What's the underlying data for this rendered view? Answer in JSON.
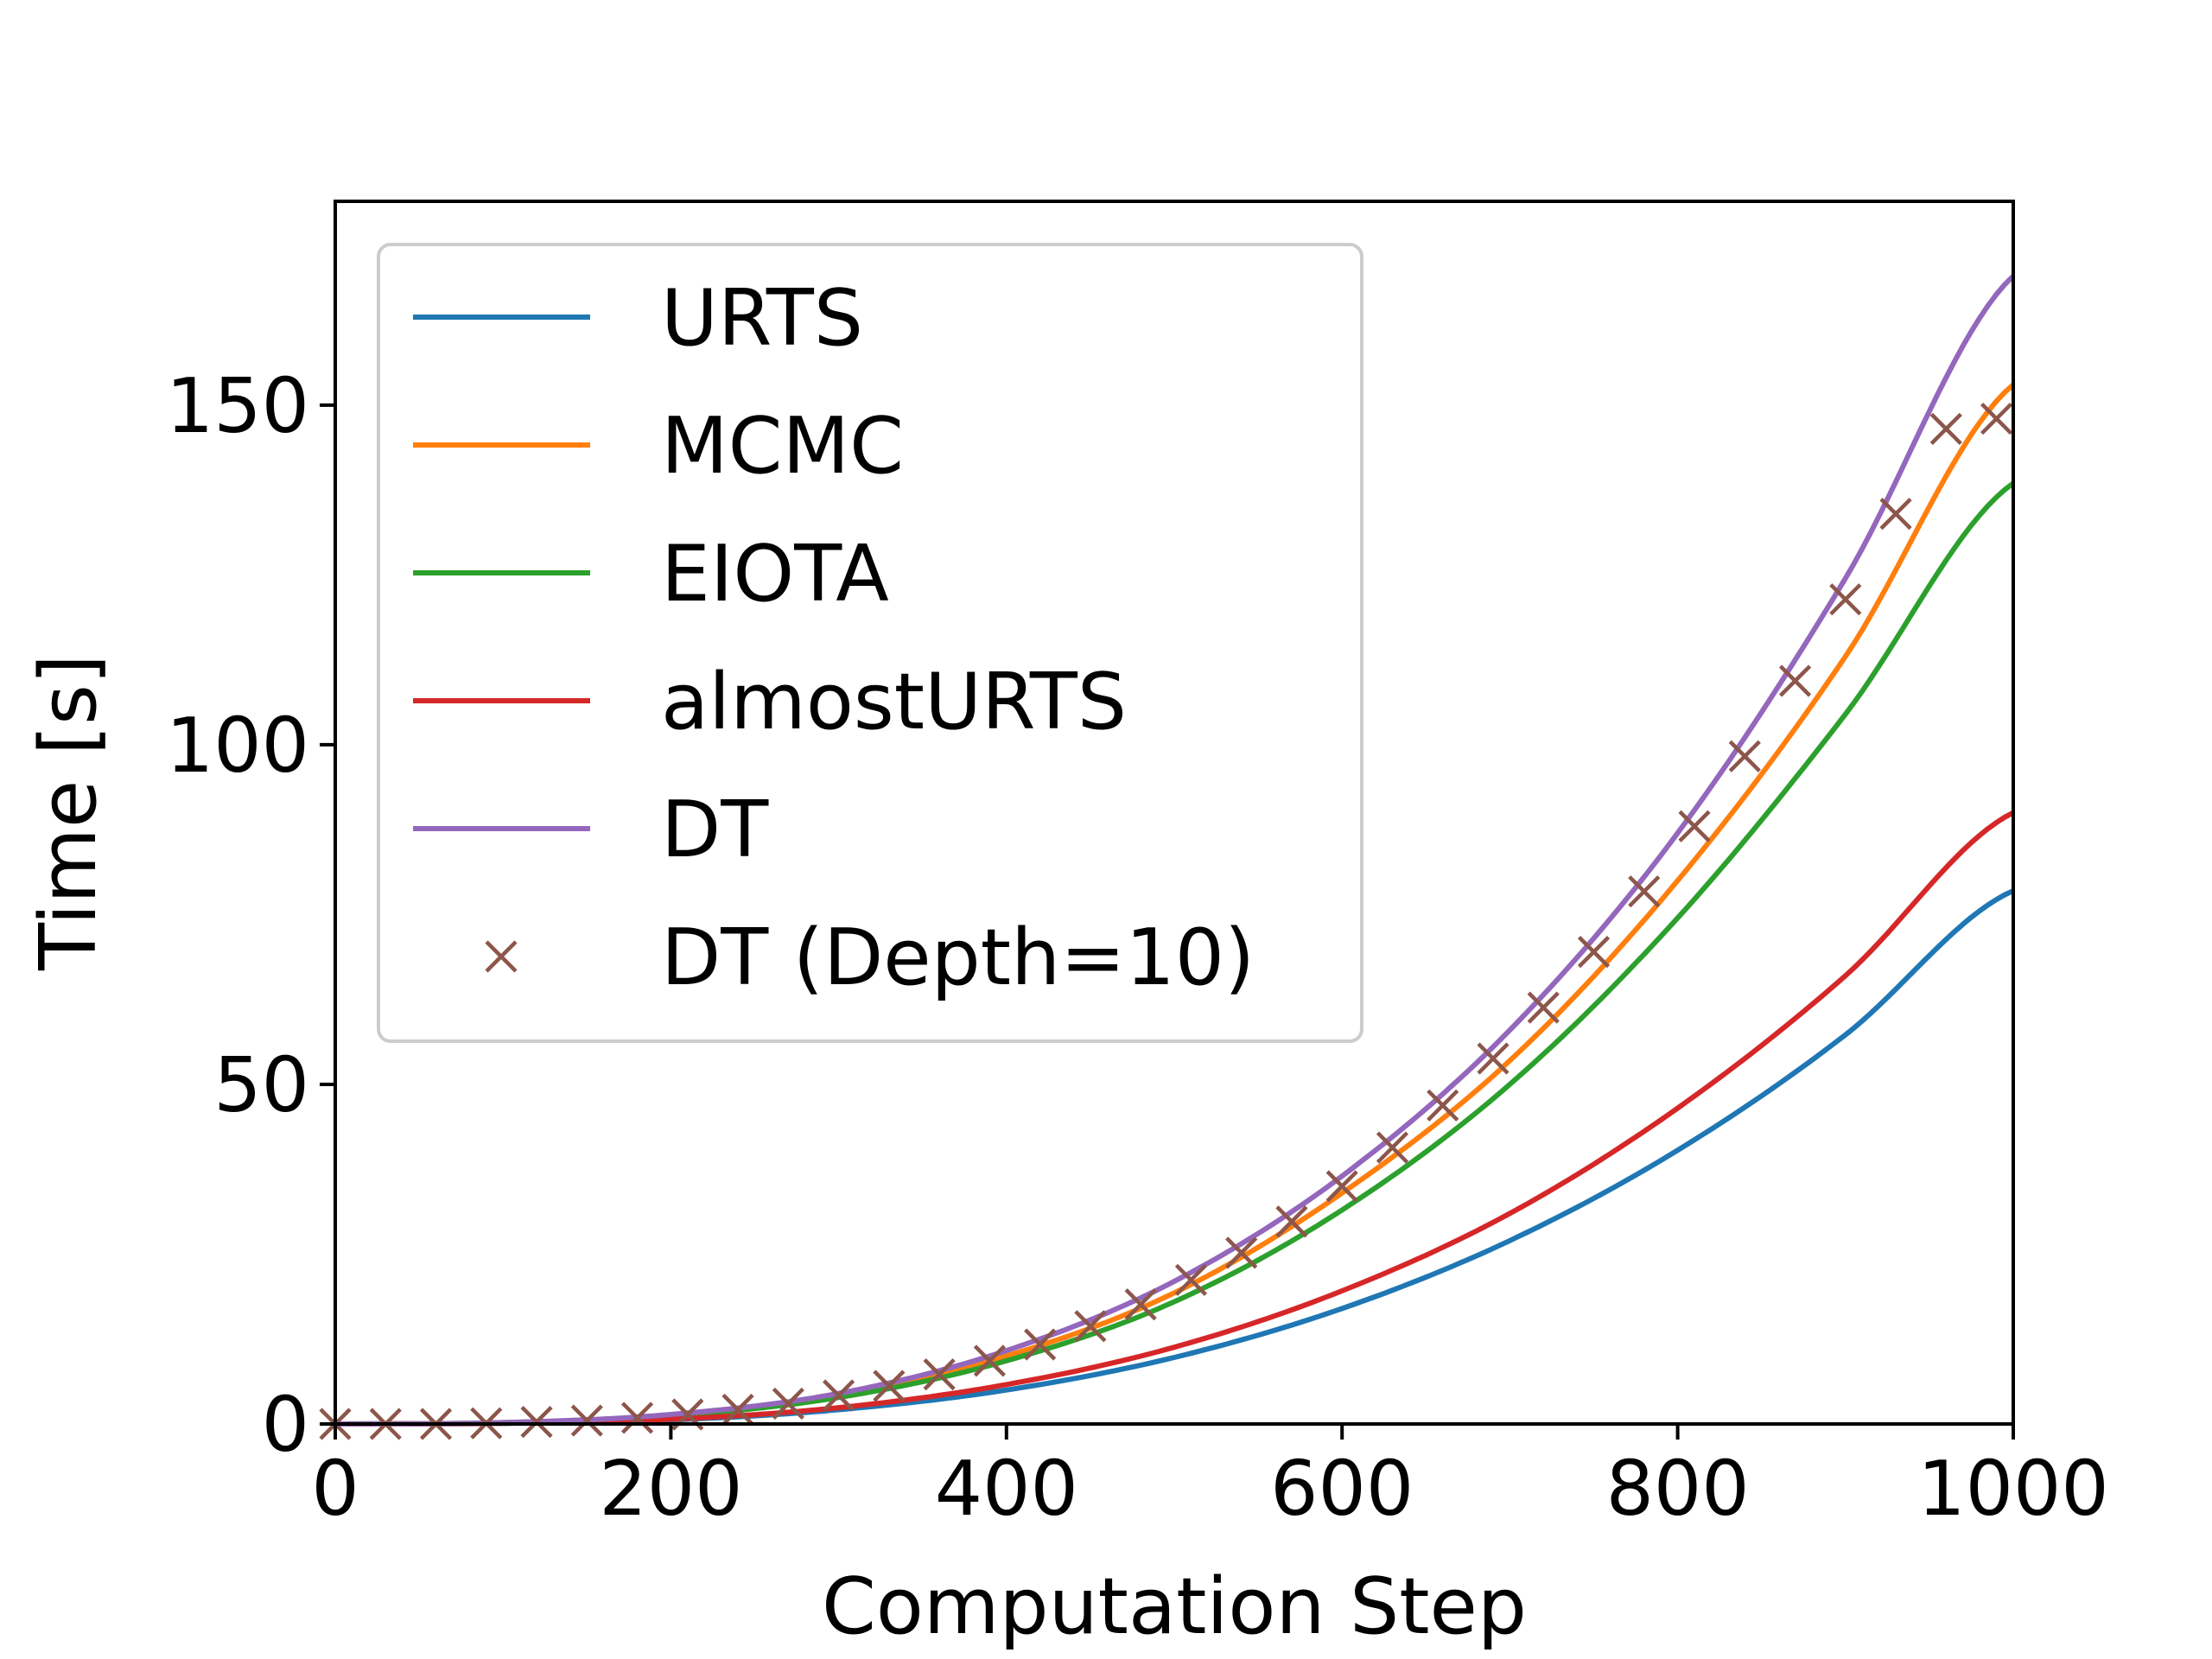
{
  "chart_data": {
    "type": "line",
    "title": "",
    "xlabel": "Computation Step",
    "ylabel": "Time [s]",
    "xlim": [
      0,
      1000
    ],
    "ylim": [
      0,
      180
    ],
    "xticks": [
      0,
      200,
      400,
      600,
      800,
      1000
    ],
    "yticks": [
      0,
      50,
      100,
      150
    ],
    "xtick_labels": [
      "0",
      "200",
      "400",
      "600",
      "800",
      "1000"
    ],
    "ytick_labels": [
      "0",
      "50",
      "100",
      "150"
    ],
    "grid": false,
    "legend_position": "upper-left",
    "x": [
      0,
      100,
      200,
      300,
      400,
      500,
      600,
      700,
      800,
      900,
      1000
    ],
    "series": [
      {
        "name": "URTS",
        "color": "#1f77b4",
        "marker": "line",
        "values": [
          0,
          0.1,
          0.6,
          2.1,
          5.0,
          9.8,
          17.0,
          27.0,
          40.3,
          57.3,
          78.5
        ]
      },
      {
        "name": "MCMC",
        "color": "#ff7f0e",
        "marker": "line",
        "values": [
          0,
          0.2,
          1.3,
          4.2,
          10.0,
          19.3,
          34.0,
          53.5,
          80.0,
          113.0,
          153.0
        ]
      },
      {
        "name": "EIOTA",
        "color": "#2ca02c",
        "marker": "line",
        "values": [
          0,
          0.2,
          1.2,
          3.9,
          9.3,
          18.0,
          31.5,
          50.0,
          74.5,
          104.5,
          138.5
        ]
      },
      {
        "name": "almostURTS",
        "color": "#d62728",
        "marker": "line",
        "values": [
          0,
          0.1,
          0.7,
          2.4,
          5.8,
          11.3,
          19.6,
          31.0,
          46.5,
          66.0,
          90.0
        ]
      },
      {
        "name": "DT",
        "color": "#9467bd",
        "marker": "line",
        "values": [
          0,
          0.2,
          1.4,
          4.5,
          10.8,
          21.0,
          36.5,
          58.0,
          87.0,
          124.5,
          169.0
        ]
      },
      {
        "name": "DT (Depth=10)",
        "color": "#8c564b",
        "marker": "x",
        "x": [
          0,
          30,
          60,
          90,
          120,
          150,
          180,
          210,
          240,
          270,
          300,
          330,
          360,
          390,
          420,
          450,
          480,
          510,
          540,
          570,
          600,
          630,
          660,
          690,
          720,
          750,
          780,
          810,
          840,
          870,
          900,
          930,
          960,
          990
        ],
        "values": [
          0,
          0.0,
          0.0,
          0.1,
          0.3,
          0.5,
          0.9,
          1.4,
          2.1,
          3.0,
          4.2,
          5.6,
          7.3,
          9.3,
          11.7,
          14.4,
          17.6,
          21.2,
          25.2,
          29.8,
          35.0,
          40.7,
          46.9,
          53.8,
          61.3,
          69.5,
          78.4,
          88.0,
          98.3,
          109.4,
          121.4,
          134.0,
          146.5,
          148.0
        ]
      }
    ]
  }
}
